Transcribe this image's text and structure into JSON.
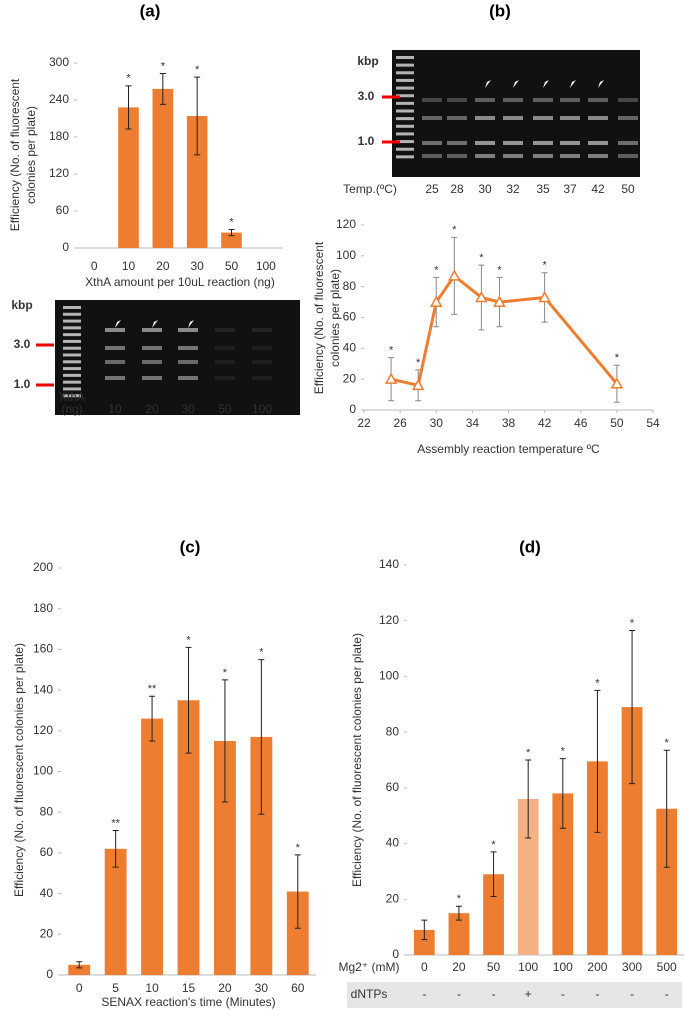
{
  "chart_data": [
    {
      "type": "bar",
      "title": "(a)",
      "ylabel": [
        "Efficiency (No. of fluorescent",
        "colonies per plate)"
      ],
      "xlabel": "XthA amount per 10uL reaction (ng)",
      "categories": [
        "0",
        "10",
        "20",
        "30",
        "50",
        "100"
      ],
      "values": [
        null,
        228,
        258,
        214,
        25,
        null
      ],
      "errors": [
        null,
        35,
        25,
        63,
        5,
        null
      ],
      "significance": [
        null,
        "*",
        "*",
        "*",
        "*",
        null
      ],
      "color": "#ed7d31",
      "ylim": [
        0,
        300
      ],
      "yticks": [
        0,
        60,
        120,
        180,
        240,
        300
      ],
      "gel": {
        "unit": "kbp",
        "markers": [
          "3.0",
          "1.0"
        ],
        "lane_title": [
          "XthA",
          "(ng)"
        ],
        "lanes": [
          "10",
          "20",
          "30",
          "50",
          "100"
        ]
      }
    },
    {
      "type": "line",
      "title": "(b)",
      "ylabel": [
        "Efficiency (No. of fluorescent",
        "colonies per plate)"
      ],
      "xlabel": "Assembly reaction temperature ºC",
      "x": [
        25,
        28,
        30,
        32,
        35,
        37,
        42,
        50
      ],
      "values": [
        20,
        16,
        70,
        87,
        73,
        70,
        73,
        17
      ],
      "errors": [
        14,
        10,
        16,
        25,
        21,
        16,
        16,
        12
      ],
      "significance": [
        "*",
        "*",
        "*",
        "*",
        "*",
        "*",
        "*",
        "*"
      ],
      "color": "#ed7d31",
      "xlim": [
        22,
        54
      ],
      "xticks": [
        22,
        26,
        30,
        34,
        38,
        42,
        46,
        50,
        54
      ],
      "ylim": [
        0,
        120
      ],
      "yticks": [
        0,
        20,
        40,
        60,
        80,
        100,
        120
      ],
      "gel": {
        "unit": "kbp",
        "markers": [
          "3.0",
          "1.0"
        ],
        "lane_title": [
          "Temp.(ºC)"
        ],
        "lanes": [
          "25",
          "28",
          "30",
          "32",
          "35",
          "37",
          "42",
          "50"
        ]
      }
    },
    {
      "type": "bar",
      "title": "(c)",
      "ylabel": [
        "Efficiency (No. of fluorescent colonies per plate)"
      ],
      "xlabel": "SENAX reaction's time (Minutes)",
      "categories": [
        "0",
        "5",
        "10",
        "15",
        "20",
        "30",
        "60"
      ],
      "values": [
        5,
        62,
        126,
        135,
        115,
        117,
        41
      ],
      "errors": [
        1.5,
        9,
        11,
        26,
        30,
        38,
        18
      ],
      "significance": [
        null,
        "**",
        "**",
        "*",
        "*",
        "*",
        "*"
      ],
      "color": "#ed7d31",
      "ylim": [
        0,
        200
      ],
      "yticks": [
        0,
        20,
        40,
        60,
        80,
        100,
        120,
        140,
        160,
        180,
        200
      ]
    },
    {
      "type": "bar",
      "title": "(d)",
      "ylabel": [
        "Efficiency (No. of fluorescent colonies per plate)"
      ],
      "category_title": "Mg2⁺ (mM)",
      "categories": [
        "0",
        "20",
        "50",
        "100",
        "100",
        "200",
        "300",
        "500"
      ],
      "values": [
        9,
        15,
        29,
        56,
        58,
        69.5,
        89,
        52.5
      ],
      "errors": [
        3.5,
        2.5,
        8,
        14,
        12.5,
        25.5,
        27.5,
        21
      ],
      "significance": [
        null,
        "*",
        "*",
        "*",
        "*",
        "*",
        "*",
        "*"
      ],
      "colors": [
        "#ed7d31",
        "#ed7d31",
        "#ed7d31",
        "#f4b183",
        "#ed7d31",
        "#ed7d31",
        "#ed7d31",
        "#ed7d31"
      ],
      "dntps": {
        "label": "dNTPs",
        "values": [
          "-",
          "-",
          "-",
          "+",
          "-",
          "-",
          "-",
          "-"
        ]
      },
      "ylim": [
        0,
        140
      ],
      "yticks": [
        0,
        20,
        40,
        60,
        80,
        100,
        120,
        140
      ]
    }
  ]
}
